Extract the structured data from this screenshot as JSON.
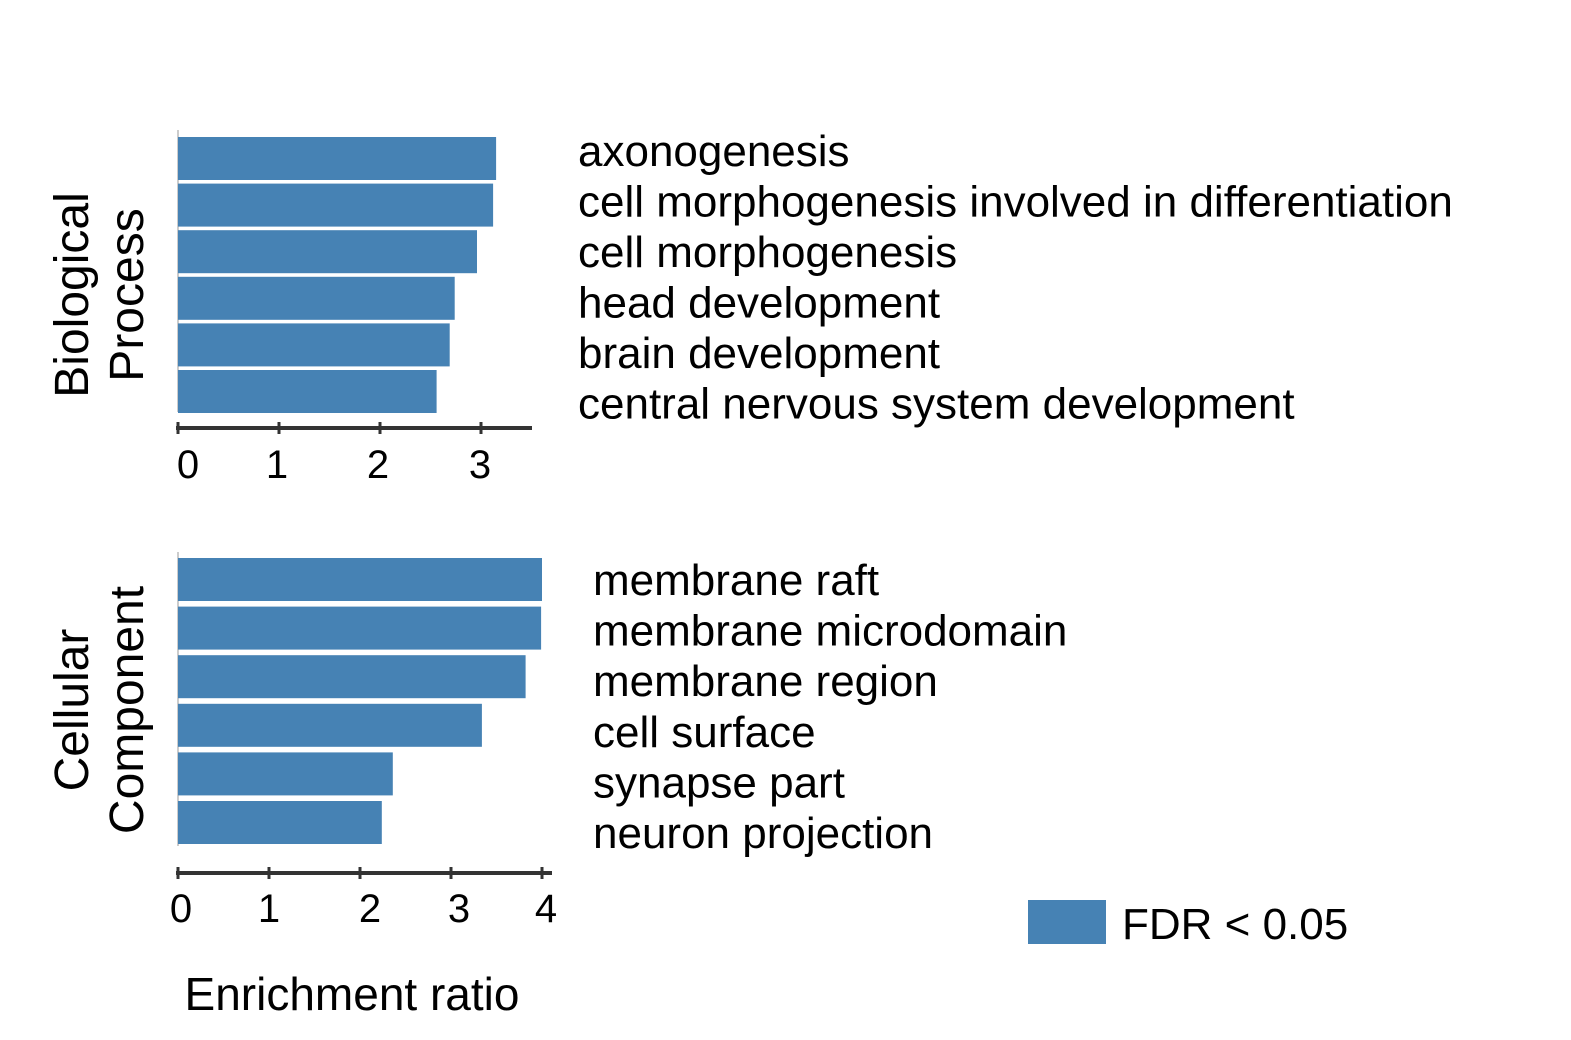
{
  "colors": {
    "bar": "#4682b4",
    "axis": "#333333"
  },
  "chart_data": [
    {
      "type": "bar",
      "orientation": "horizontal",
      "title_lines": [
        "Biological",
        "Process"
      ],
      "categories": [
        "axonogenesis",
        "cell morphogenesis involved in differentiation",
        "cell morphogenesis",
        "head development",
        "brain development",
        "central nervous system development"
      ],
      "values": [
        3.15,
        3.12,
        2.96,
        2.74,
        2.69,
        2.56
      ],
      "xlim": [
        0,
        3.5
      ],
      "xticks": [
        "0",
        "1",
        "2",
        "3"
      ],
      "grid": false
    },
    {
      "type": "bar",
      "orientation": "horizontal",
      "title_lines": [
        "Cellular",
        "Component"
      ],
      "categories": [
        "membrane raft",
        "membrane microdomain",
        "membrane region",
        "cell surface",
        "synapse part",
        "neuron projection"
      ],
      "values": [
        4.0,
        3.99,
        3.82,
        3.34,
        2.36,
        2.24
      ],
      "xlim": [
        0,
        4.05
      ],
      "xticks": [
        "0",
        "1",
        "2",
        "3",
        "4"
      ],
      "grid": false
    }
  ],
  "xlabel": "Enrichment ratio",
  "legend": {
    "label": "FDR < 0.05",
    "position": "bottom-right"
  }
}
